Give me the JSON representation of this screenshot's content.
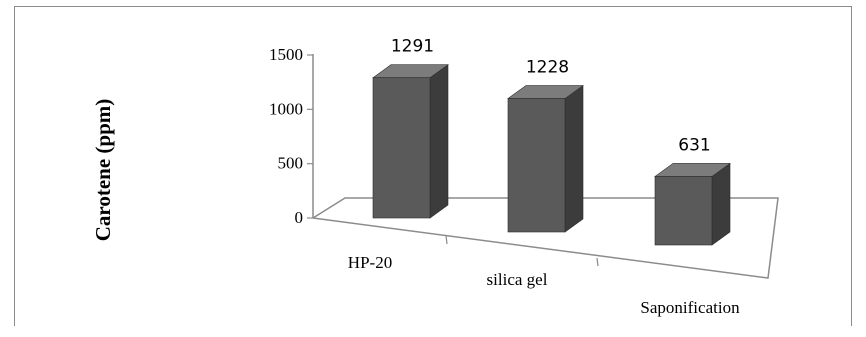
{
  "chart_data": {
    "type": "bar",
    "categories": [
      "HP-20",
      "silica gel",
      "Saponification"
    ],
    "values": [
      1291,
      1228,
      631
    ],
    "data_labels": [
      "1291",
      "1228",
      "631"
    ],
    "ylabel": "Carotene (ppm)",
    "ylim": [
      0,
      1500
    ],
    "yticks": [
      "0",
      "500",
      "1000",
      "1500"
    ],
    "grid": false,
    "legend": "none",
    "colors": {
      "bar_front": "#5a5a5a",
      "bar_side": "#3c3c3c",
      "bar_top": "#7c7c7c",
      "floor_line": "#8c8c8c"
    }
  }
}
